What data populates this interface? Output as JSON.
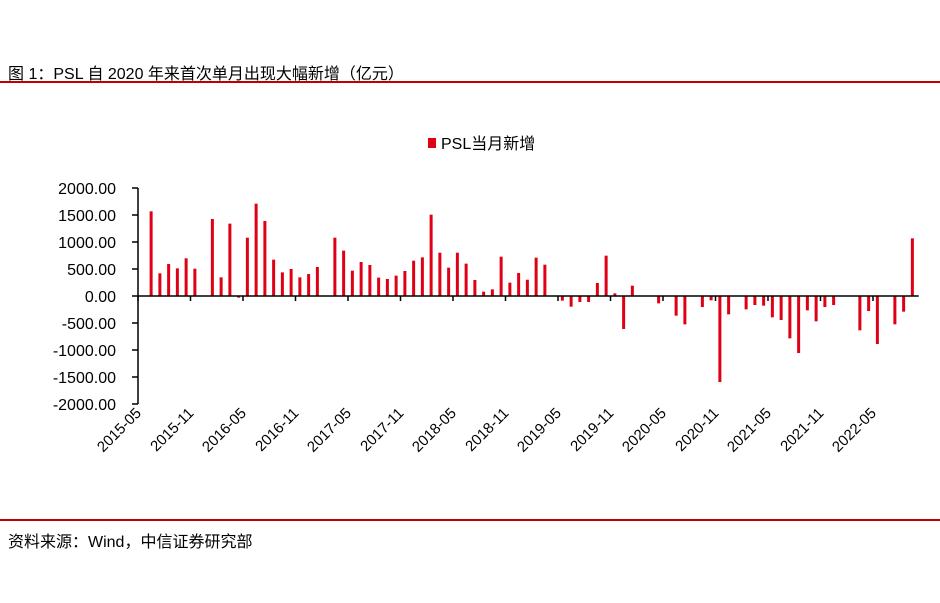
{
  "title": "图 1：PSL 自 2020 年来首次单月出现大幅新增（亿元）",
  "source": "资料来源：Wind，中信证券研究部",
  "colors": {
    "bar": "#e00015",
    "rule": "#c00000"
  },
  "chart_data": {
    "type": "bar",
    "title": "",
    "legend": {
      "label": "PSL当月新增",
      "placement": "top-center"
    },
    "ylim": [
      -2000,
      2000
    ],
    "yticks": [
      "2000.00",
      "1500.00",
      "1000.00",
      "500.00",
      "0.00",
      "-500.00",
      "-1000.00",
      "-1500.00",
      "-2000.00"
    ],
    "ytick_values": [
      2000,
      1500,
      1000,
      500,
      0,
      -500,
      -1000,
      -1500,
      -2000
    ],
    "start_month": "2015-04",
    "xtick_labels": [
      "2015-05",
      "2015-11",
      "2016-05",
      "2016-11",
      "2017-05",
      "2017-11",
      "2018-05",
      "2018-11",
      "2019-05",
      "2019-11",
      "2020-05",
      "2020-11",
      "2021-05",
      "2021-11",
      "2022-05"
    ],
    "values": [
      0,
      1568,
      420,
      593,
      512,
      698,
      506,
      0,
      1426,
      346,
      1340,
      -30,
      1080,
      1710,
      1389,
      673,
      438,
      500,
      346,
      407,
      537,
      0,
      1080,
      840,
      469,
      630,
      574,
      340,
      315,
      377,
      463,
      654,
      716,
      1506,
      802,
      525,
      802,
      599,
      296,
      80,
      123,
      728,
      247,
      426,
      302,
      710,
      580,
      0,
      -86,
      -198,
      -111,
      -111,
      241,
      747,
      49,
      -611,
      191,
      0,
      0,
      -136,
      0,
      -364,
      -525,
      -5,
      -204,
      -80,
      -1593,
      -340,
      0,
      -247,
      -167,
      -179,
      -395,
      -444,
      -784,
      -1056,
      -266,
      -469,
      -204,
      -167,
      0,
      0,
      -636,
      -278,
      -889,
      0,
      -525,
      -290,
      1068
    ]
  }
}
